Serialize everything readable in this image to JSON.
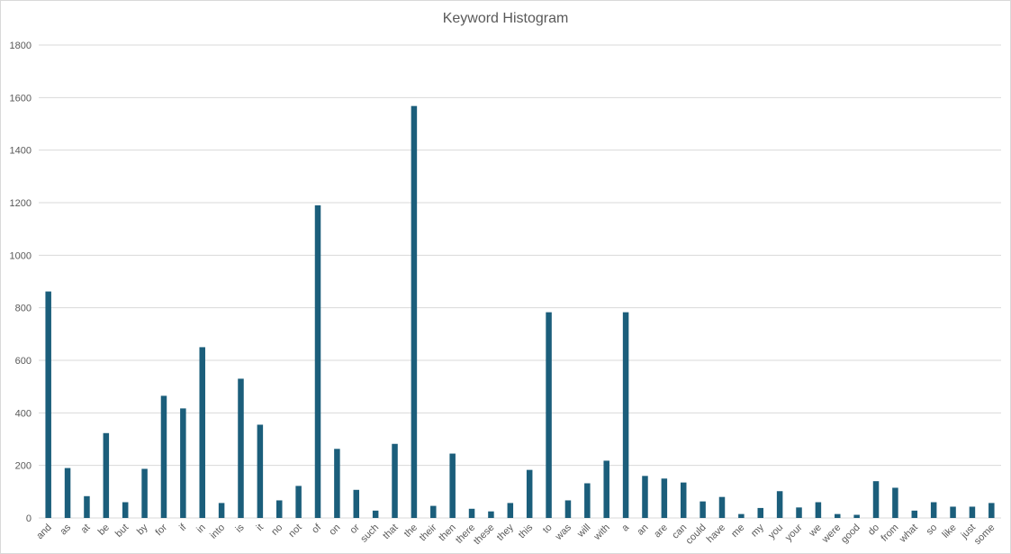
{
  "chart_data": {
    "type": "bar",
    "title": "Keyword Histogram",
    "xlabel": "",
    "ylabel": "",
    "ylim": [
      0,
      1800
    ],
    "yticks": [
      0,
      200,
      400,
      600,
      800,
      1000,
      1200,
      1400,
      1600,
      1800
    ],
    "grid": true,
    "legend": "none",
    "bar_color": "#1b5e7b",
    "categories": [
      "and",
      "as",
      "at",
      "be",
      "but",
      "by",
      "for",
      "if",
      "in",
      "into",
      "is",
      "it",
      "no",
      "not",
      "of",
      "on",
      "or",
      "such",
      "that",
      "the",
      "their",
      "then",
      "there",
      "these",
      "they",
      "this",
      "to",
      "was",
      "will",
      "with",
      "a",
      "an",
      "are",
      "can",
      "could",
      "have",
      "me",
      "my",
      "you",
      "your",
      "we",
      "were",
      "good",
      "do",
      "from",
      "what",
      "so",
      "like",
      "just",
      "some"
    ],
    "values": [
      862,
      190,
      83,
      323,
      60,
      187,
      465,
      417,
      650,
      57,
      530,
      355,
      67,
      122,
      1190,
      263,
      107,
      28,
      282,
      1568,
      46,
      245,
      35,
      25,
      57,
      183,
      783,
      67,
      132,
      218,
      783,
      160,
      150,
      135,
      63,
      80,
      15,
      38,
      102,
      40,
      60,
      15,
      12,
      140,
      115,
      28,
      60,
      43,
      43,
      57
    ]
  }
}
